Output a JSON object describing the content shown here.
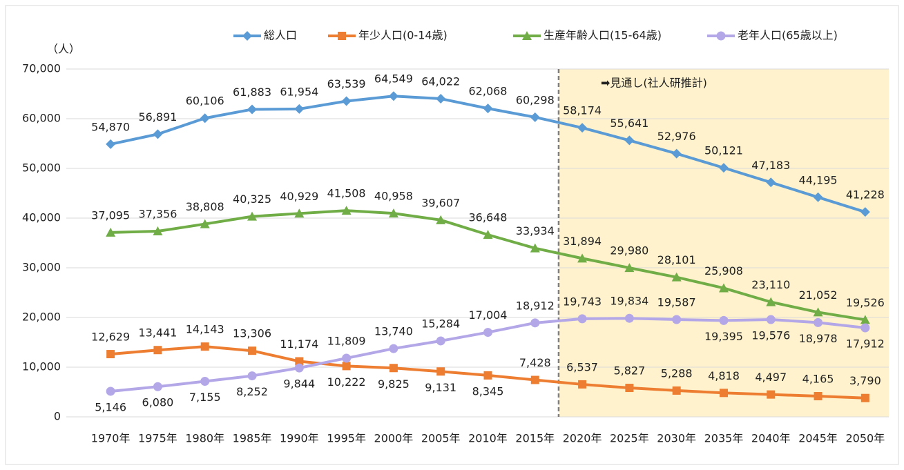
{
  "chart_data": {
    "type": "line",
    "y_label": "（人）",
    "annotation": "➡見通し(社人研推計)",
    "categories": [
      "1970年",
      "1975年",
      "1980年",
      "1985年",
      "1990年",
      "1995年",
      "2000年",
      "2005年",
      "2010年",
      "2015年",
      "2020年",
      "2025年",
      "2030年",
      "2035年",
      "2040年",
      "2045年",
      "2050年"
    ],
    "series": [
      {
        "name": "総人口",
        "color": "#5b9bd5",
        "label_color": "#4a86c5",
        "marker": "diamond",
        "values": [
          54870,
          56891,
          60106,
          61883,
          61954,
          63539,
          64549,
          64022,
          62068,
          60298,
          58174,
          55641,
          52976,
          50121,
          47183,
          44195,
          41228
        ],
        "value_labels": [
          "54,870",
          "56,891",
          "60,106",
          "61,883",
          "61,954",
          "63,539",
          "64,549",
          "64,022",
          "62,068",
          "60,298",
          "58,174",
          "55,641",
          "52,976",
          "50,121",
          "47,183",
          "44,195",
          "41,228"
        ]
      },
      {
        "name": "年少人口(0-14歳)",
        "color": "#ed7d31",
        "label_color": "#c55a11",
        "marker": "square",
        "values": [
          12629,
          13441,
          14143,
          13306,
          11174,
          10222,
          9825,
          9131,
          8345,
          7428,
          6537,
          5827,
          5288,
          4818,
          4497,
          4165,
          3790
        ],
        "value_labels": [
          "12,629",
          "13,441",
          "14,143",
          "13,306",
          "11,174",
          "10,222",
          "9,825",
          "9,131",
          "8,345",
          "7,428",
          "6,537",
          "5,827",
          "5,288",
          "4,818",
          "4,497",
          "4,165",
          "3,790"
        ]
      },
      {
        "name": "生産年齢人口(15-64歳)",
        "color": "#70ad47",
        "label_color": "#476b2a",
        "marker": "triangle",
        "values": [
          37095,
          37356,
          38808,
          40325,
          40929,
          41508,
          40958,
          39607,
          36648,
          33934,
          31894,
          29980,
          28101,
          25908,
          23110,
          21052,
          19526
        ],
        "value_labels": [
          "37,095",
          "37,356",
          "38,808",
          "40,325",
          "40,929",
          "41,508",
          "40,958",
          "39,607",
          "36,648",
          "33,934",
          "31,894",
          "29,980",
          "28,101",
          "25,908",
          "23,110",
          "21,052",
          "19,526"
        ]
      },
      {
        "name": "老年人口(65歳以上)",
        "color": "#b4a7e8",
        "label_color": "#7030a0",
        "marker": "circle",
        "values": [
          5146,
          6080,
          7155,
          8252,
          9844,
          11809,
          13740,
          15284,
          17004,
          18912,
          19743,
          19834,
          19587,
          19395,
          19576,
          18978,
          17912
        ],
        "value_labels": [
          "5,146",
          "6,080",
          "7,155",
          "8,252",
          "9,844",
          "11,809",
          "13,740",
          "15,284",
          "17,004",
          "18,912",
          "19,743",
          "19,834",
          "19,587",
          "19,395",
          "19,576",
          "18,978",
          "17,912"
        ]
      }
    ],
    "ylim": [
      0,
      70000
    ],
    "yticks": [
      0,
      {
        "value": 10000,
        "label": "10,000"
      },
      {
        "value": 20000,
        "label": "20,000"
      },
      {
        "value": 30000,
        "label": "30,000"
      },
      {
        "value": 40000,
        "label": "40,000"
      },
      {
        "value": 50000,
        "label": "50,000"
      },
      {
        "value": 60000,
        "label": "60,000"
      },
      {
        "value": 70000,
        "label": "70,000"
      }
    ],
    "grid": true,
    "legend": "top"
  }
}
